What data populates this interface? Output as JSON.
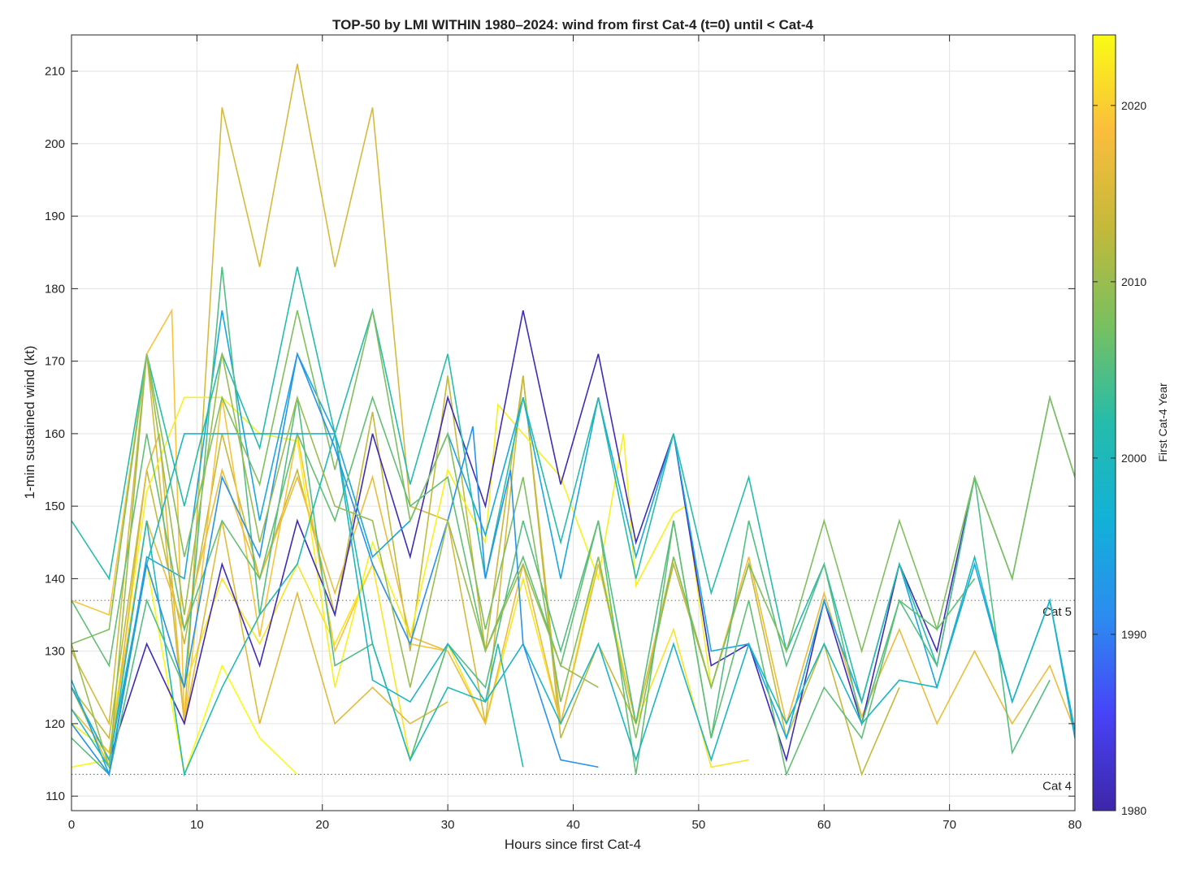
{
  "chart_data": {
    "type": "line",
    "title": "TOP-50 by LMI WITHIN 1980–2024: wind from first Cat-4 (t=0) until < Cat-4",
    "xlabel": "Hours since first Cat-4",
    "ylabel": "1-min sustained wind (kt)",
    "xlim": [
      0,
      80
    ],
    "ylim": [
      108,
      215
    ],
    "xticks": [
      0,
      10,
      20,
      30,
      40,
      50,
      60,
      70,
      80
    ],
    "yticks": [
      110,
      120,
      130,
      140,
      150,
      160,
      170,
      180,
      190,
      200,
      210
    ],
    "grid": true,
    "reference_lines": [
      {
        "label": "Cat 5",
        "y": 137
      },
      {
        "label": "Cat 4",
        "y": 113
      }
    ],
    "colorbar": {
      "label": "First Cat-4 Year",
      "range": [
        1980,
        2024
      ],
      "ticks": [
        1980,
        1990,
        2000,
        2010,
        2020
      ],
      "colormap": [
        "#3e26a8",
        "#4743f8",
        "#2c8cf0",
        "#12b1d8",
        "#25bcab",
        "#78c060",
        "#c3b93a",
        "#fbbd3c",
        "#f9fb15"
      ]
    },
    "series": [
      {
        "year": 2015,
        "x": [
          0,
          3,
          6,
          9,
          12,
          15,
          18,
          21,
          24,
          27,
          30,
          33,
          36,
          39
        ],
        "y": [
          130,
          120,
          171,
          120,
          205,
          183,
          211,
          183,
          205,
          150,
          148,
          120,
          168,
          120
        ]
      },
      {
        "year": 2013,
        "x": [
          0,
          3,
          6,
          9,
          12,
          15,
          18,
          21,
          24,
          27,
          30,
          33,
          36,
          39,
          42,
          45,
          48,
          51,
          54,
          57,
          60,
          63,
          66
        ],
        "y": [
          125,
          118,
          155,
          131,
          160,
          140,
          155,
          135,
          163,
          130,
          168,
          130,
          168,
          118,
          131,
          120,
          142,
          125,
          142,
          118,
          131,
          113,
          125
        ]
      },
      {
        "year": 2019,
        "x": [
          0,
          3,
          6,
          8,
          9,
          12,
          15,
          18,
          21,
          24,
          27,
          30
        ],
        "y": [
          137,
          135,
          171,
          177,
          120,
          165,
          132,
          160,
          130,
          142,
          131,
          130
        ]
      },
      {
        "year": 2023,
        "x": [
          0,
          3,
          6,
          9,
          12,
          15,
          18,
          21,
          24,
          27,
          30,
          33,
          34,
          36,
          39,
          42,
          44,
          45,
          48,
          49,
          51
        ],
        "y": [
          120,
          116,
          152,
          165,
          165,
          160,
          159,
          125,
          145,
          132,
          155,
          145,
          164,
          160,
          154,
          140,
          160,
          139,
          149,
          150,
          125
        ]
      },
      {
        "year": 2022,
        "x": [
          0,
          3,
          6,
          9,
          12,
          15,
          18,
          21,
          24,
          27,
          30,
          33,
          36,
          39,
          42,
          45,
          48,
          51,
          54
        ],
        "y": [
          114,
          115,
          142,
          125,
          140,
          131,
          142,
          131,
          142,
          115,
          131,
          120,
          140,
          120,
          143,
          120,
          133,
          114,
          115
        ]
      },
      {
        "year": 2024,
        "x": [
          0,
          3,
          6,
          9,
          12,
          15,
          18
        ],
        "y": [
          114,
          115,
          142,
          113,
          128,
          118,
          113
        ]
      },
      {
        "year": 2016,
        "x": [
          0,
          3,
          6,
          7,
          9,
          12,
          15,
          18,
          21,
          24,
          27,
          30
        ],
        "y": [
          125,
          114,
          155,
          160,
          120,
          148,
          120,
          138,
          120,
          125,
          120,
          123
        ]
      },
      {
        "year": 2017,
        "x": [
          0,
          3,
          6,
          9,
          12,
          15,
          18,
          21,
          24,
          27,
          30,
          33,
          36,
          39,
          42,
          45,
          48,
          51,
          54,
          57,
          60,
          63,
          66,
          69,
          72,
          75,
          78,
          80
        ],
        "y": [
          122,
          116,
          148,
          133,
          155,
          140,
          154,
          138,
          154,
          132,
          130,
          120,
          142,
          120,
          142,
          120,
          143,
          125,
          143,
          120,
          138,
          121,
          133,
          120,
          130,
          120,
          128,
          119
        ]
      },
      {
        "year": 1981,
        "x": [
          0,
          3,
          6,
          9,
          12,
          15,
          18,
          21,
          24,
          27,
          30,
          33,
          36,
          39,
          42,
          45,
          48,
          51,
          54,
          57,
          60,
          63,
          66,
          69,
          72
        ],
        "y": [
          125,
          115,
          131,
          120,
          142,
          128,
          148,
          135,
          160,
          143,
          165,
          150,
          177,
          153,
          171,
          145,
          160,
          128,
          131,
          115,
          137,
          120,
          142,
          130,
          154
        ]
      },
      {
        "year": 1995,
        "x": [
          0,
          3,
          6,
          9,
          12,
          15,
          18,
          21,
          24,
          27,
          30,
          33,
          36,
          39,
          42,
          45,
          48,
          51,
          54,
          57,
          60,
          63,
          66,
          69,
          72,
          75,
          78,
          80
        ],
        "y": [
          126,
          113,
          143,
          140,
          177,
          148,
          171,
          160,
          143,
          148,
          160,
          146,
          165,
          140,
          165,
          143,
          160,
          130,
          131,
          118,
          137,
          123,
          142,
          125,
          142,
          123,
          137,
          118
        ]
      },
      {
        "year": 2002,
        "x": [
          0,
          3,
          6,
          9,
          12,
          15,
          18,
          21,
          24,
          27,
          30,
          33,
          36,
          39,
          42,
          45,
          48,
          51,
          54,
          57,
          60,
          63,
          66,
          69,
          72,
          75,
          78,
          80
        ],
        "y": [
          148,
          140,
          171,
          150,
          171,
          158,
          183,
          160,
          177,
          153,
          171,
          140,
          165,
          145,
          165,
          140,
          160,
          138,
          154,
          130,
          142,
          123,
          142,
          128,
          154,
          140,
          165,
          154
        ]
      },
      {
        "year": 2005,
        "x": [
          0,
          3,
          6,
          9,
          12,
          15,
          18,
          21,
          24,
          27,
          30,
          33,
          36,
          39,
          42,
          45,
          48,
          51,
          54,
          57,
          60,
          63,
          66,
          69,
          72,
          75,
          78
        ],
        "y": [
          118,
          113,
          137,
          125,
          183,
          135,
          165,
          128,
          131,
          115,
          131,
          125,
          148,
          130,
          148,
          120,
          148,
          118,
          148,
          128,
          142,
          120,
          137,
          128,
          154,
          116,
          126
        ]
      },
      {
        "year": 2008,
        "x": [
          0,
          3,
          6,
          9,
          12,
          15,
          18,
          21,
          24,
          27,
          30,
          33,
          36,
          39,
          42,
          45,
          48,
          51,
          54,
          57,
          60,
          63,
          66,
          69,
          72,
          75,
          78,
          80
        ],
        "y": [
          131,
          133,
          171,
          143,
          165,
          153,
          177,
          155,
          177,
          148,
          160,
          133,
          154,
          123,
          143,
          118,
          143,
          125,
          142,
          130,
          148,
          130,
          148,
          133,
          154,
          140,
          165,
          154
        ]
      },
      {
        "year": 2006,
        "x": [
          0,
          3,
          6,
          9,
          12,
          15,
          18,
          21,
          24,
          27,
          30,
          33,
          36,
          39,
          42,
          45,
          48,
          51,
          54,
          57,
          60,
          63,
          66,
          69,
          72
        ],
        "y": [
          137,
          128,
          160,
          133,
          148,
          140,
          160,
          148,
          165,
          150,
          154,
          130,
          143,
          128,
          148,
          113,
          148,
          118,
          137,
          113,
          125,
          118,
          137,
          133,
          140
        ]
      },
      {
        "year": 1999,
        "x": [
          0,
          3,
          6,
          9,
          12,
          15,
          18,
          21,
          24,
          27,
          30,
          33,
          36,
          39,
          42,
          45,
          48,
          51,
          54,
          57,
          60,
          63,
          66,
          69,
          72,
          75,
          78,
          80
        ],
        "y": [
          125,
          115,
          142,
          160,
          160,
          160,
          160,
          160,
          126,
          123,
          131,
          123,
          131,
          120,
          131,
          115,
          131,
          115,
          131,
          120,
          131,
          120,
          126,
          125,
          143,
          123,
          137,
          119
        ]
      },
      {
        "year": 2001,
        "x": [
          0,
          3,
          6,
          9,
          12,
          15,
          18,
          21,
          24,
          27,
          30,
          33,
          34,
          36
        ],
        "y": [
          122,
          114,
          148,
          113,
          125,
          135,
          142,
          160,
          131,
          115,
          125,
          123,
          131,
          114
        ]
      },
      {
        "year": 1992,
        "x": [
          0,
          3,
          6,
          9,
          12,
          15,
          18,
          21,
          24,
          27,
          30,
          32,
          33,
          35,
          36,
          39,
          42
        ],
        "y": [
          120,
          113,
          142,
          125,
          154,
          143,
          171,
          158,
          142,
          131,
          148,
          161,
          140,
          155,
          131,
          115,
          114
        ]
      },
      {
        "year": 2010,
        "x": [
          0,
          3,
          6,
          9,
          12,
          15,
          18,
          21,
          24,
          27,
          30,
          33,
          36,
          39,
          42
        ],
        "y": [
          131,
          114,
          171,
          135,
          171,
          145,
          165,
          150,
          148,
          125,
          148,
          130,
          142,
          128,
          125
        ]
      }
    ]
  }
}
